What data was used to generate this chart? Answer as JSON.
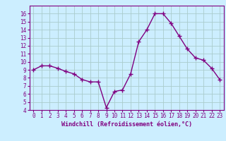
{
  "x_values": [
    0,
    1,
    2,
    3,
    4,
    5,
    6,
    7,
    8,
    9,
    10,
    11,
    12,
    13,
    14,
    15,
    16,
    17,
    18,
    19,
    20,
    21,
    22,
    23
  ],
  "y_values": [
    9.0,
    9.5,
    9.5,
    9.2,
    8.8,
    8.5,
    7.8,
    7.5,
    7.5,
    4.3,
    6.3,
    6.5,
    8.5,
    12.5,
    14.0,
    16.0,
    16.0,
    14.8,
    13.2,
    11.6,
    10.5,
    10.2,
    9.2,
    7.8
  ],
  "line_color": "#800080",
  "marker": "+",
  "marker_size": 4,
  "bg_color": "#cceeff",
  "grid_color": "#aacccc",
  "xlabel": "Windchill (Refroidissement éolien,°C)",
  "xlim": [
    -0.5,
    23.5
  ],
  "ylim": [
    4,
    17
  ],
  "yticks": [
    4,
    5,
    6,
    7,
    8,
    9,
    10,
    11,
    12,
    13,
    14,
    15,
    16
  ],
  "xticks": [
    0,
    1,
    2,
    3,
    4,
    5,
    6,
    7,
    8,
    9,
    10,
    11,
    12,
    13,
    14,
    15,
    16,
    17,
    18,
    19,
    20,
    21,
    22,
    23
  ],
  "axis_color": "#800080",
  "tick_color": "#800080",
  "label_color": "#800080",
  "tick_fontsize": 5.5,
  "label_fontsize": 6.0,
  "linewidth": 1.0,
  "markeredgewidth": 1.0
}
